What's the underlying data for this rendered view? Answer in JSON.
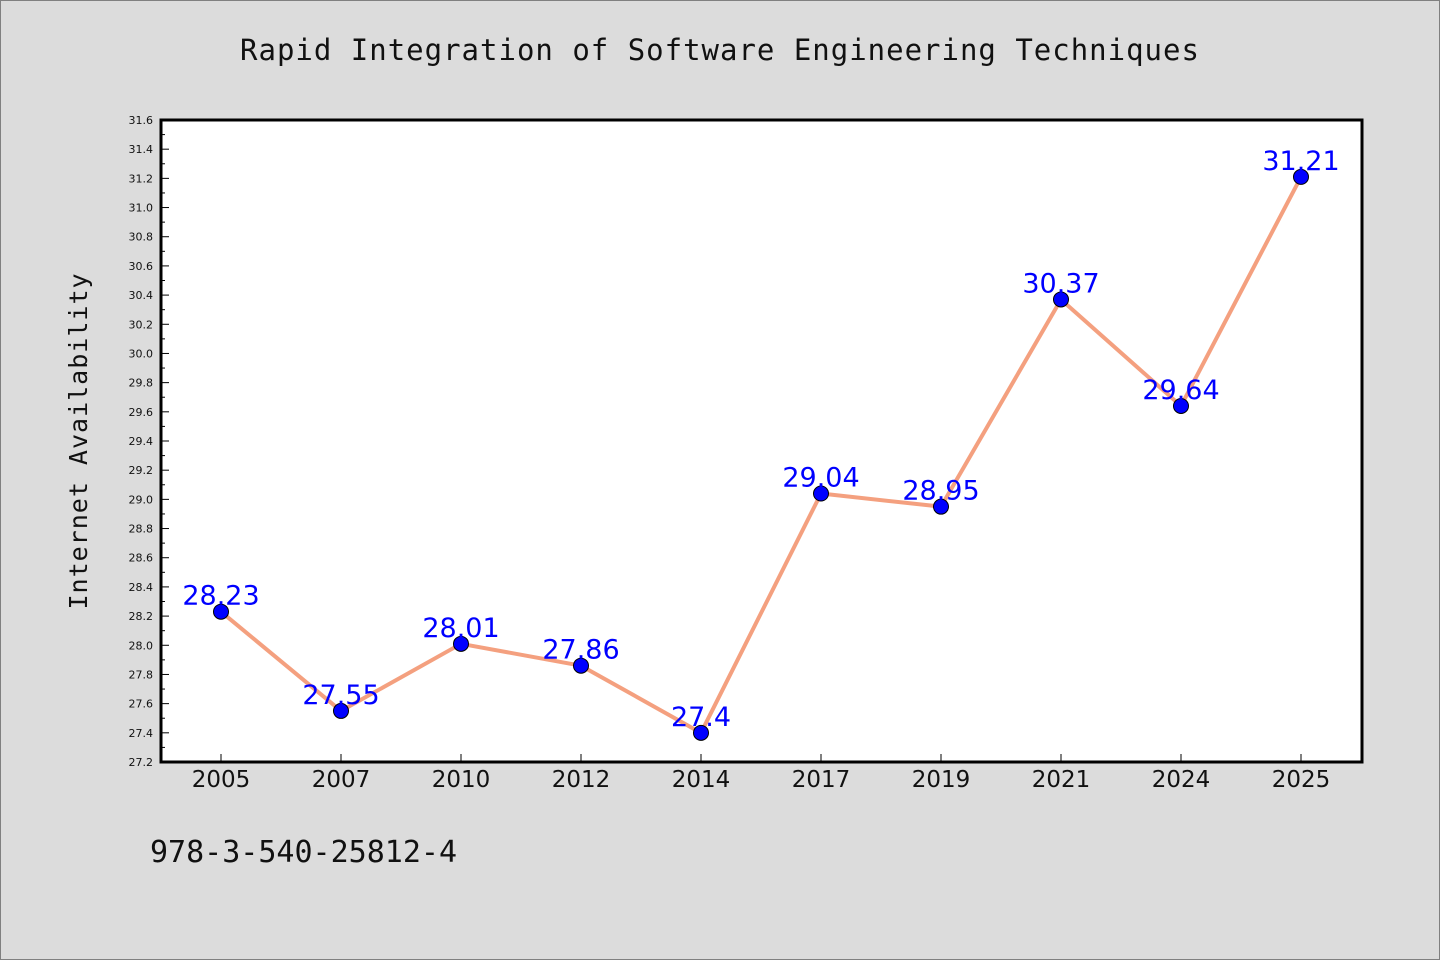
{
  "chart_data": {
    "type": "line",
    "title": "Rapid Integration of Software Engineering Techniques",
    "xlabel": "",
    "ylabel": "Internet Availability",
    "categories": [
      "2005",
      "2007",
      "2010",
      "2012",
      "2014",
      "2017",
      "2019",
      "2021",
      "2024",
      "2025"
    ],
    "series": [
      {
        "values": [
          28.23,
          27.55,
          28.01,
          27.86,
          27.4,
          29.04,
          28.95,
          30.37,
          29.64,
          31.21
        ]
      }
    ],
    "data_labels": [
      "28.23",
      "27.55",
      "28.01",
      "27.86",
      "27.4",
      "29.04",
      "28.95",
      "30.37",
      "29.64",
      "31.21"
    ],
    "ylim": [
      27.2,
      31.6
    ],
    "yticks": [
      "27.2",
      "27.4",
      "27.6",
      "27.8",
      "28.0",
      "28.2",
      "28.4",
      "28.6",
      "28.8",
      "29.0",
      "29.2",
      "29.4",
      "29.6",
      "29.8",
      "30.0",
      "30.2",
      "30.4",
      "30.6",
      "30.8",
      "31.0",
      "31.2",
      "31.4",
      "31.6"
    ],
    "grid": false,
    "colors": {
      "line": "#f4a07f",
      "marker": "#0000ff",
      "label": "#0000ff",
      "background": "#dcdcdc",
      "plot_background": "#ffffff"
    }
  },
  "footer": {
    "code": "978-3-540-25812-4"
  }
}
